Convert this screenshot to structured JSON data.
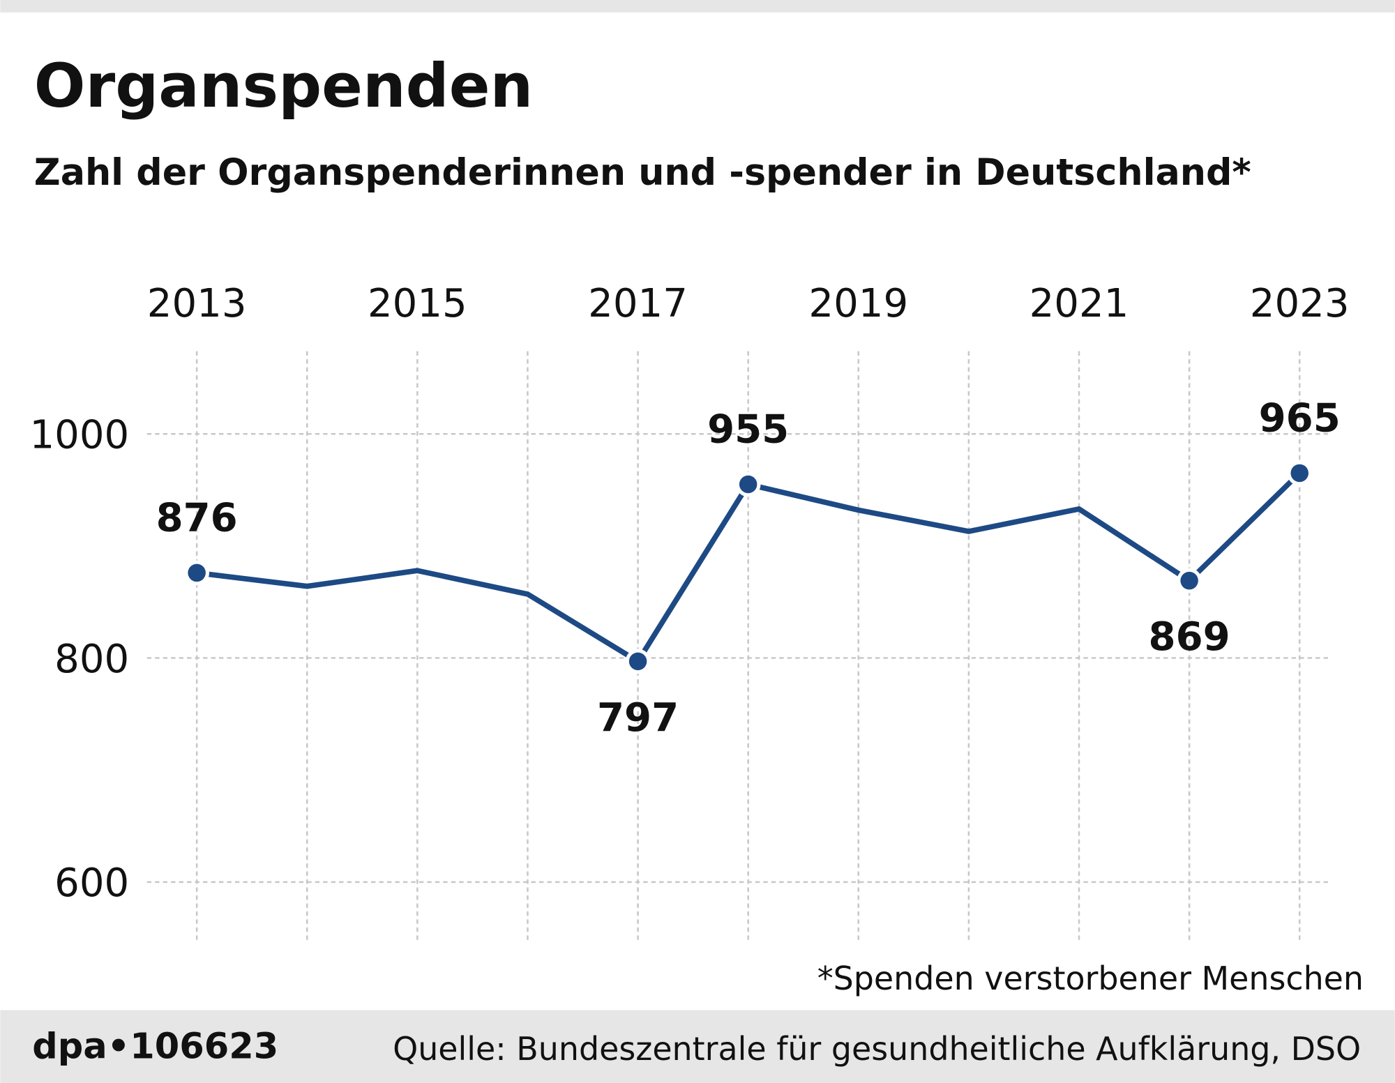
{
  "title": "Organspenden",
  "subtitle": "Zahl der Organspenderinnen und -spender in Deutschland*",
  "footnote": "*Spenden verstorbener Menschen",
  "footer": {
    "brand": "dpa•106623",
    "source": "Quelle: Bundeszentrale für gesundheitliche Aufklärung, DSO"
  },
  "colors": {
    "line": "#1d4a85",
    "footer_bg": "#e6e6e6",
    "grid": "#c8c8c8"
  },
  "chart_data": {
    "type": "line",
    "title": "Organspenden",
    "subtitle": "Zahl der Organspenderinnen und -spender in Deutschland*",
    "xlabel": "",
    "ylabel": "",
    "x": [
      2013,
      2014,
      2015,
      2016,
      2017,
      2018,
      2019,
      2020,
      2021,
      2022,
      2023
    ],
    "values": [
      876,
      864,
      878,
      857,
      797,
      955,
      932,
      913,
      933,
      869,
      965
    ],
    "labeled_points": [
      {
        "year": 2013,
        "label": "876",
        "position": "above"
      },
      {
        "year": 2017,
        "label": "797",
        "position": "below"
      },
      {
        "year": 2018,
        "label": "955",
        "position": "above"
      },
      {
        "year": 2022,
        "label": "869",
        "position": "below"
      },
      {
        "year": 2023,
        "label": "965",
        "position": "above"
      }
    ],
    "x_ticks": [
      "2013",
      "2015",
      "2017",
      "2019",
      "2021",
      "2023"
    ],
    "x_axis_position": "top",
    "y_ticks": [
      "600",
      "800",
      "1000"
    ],
    "ylim": [
      550,
      1070
    ],
    "grid": true
  }
}
